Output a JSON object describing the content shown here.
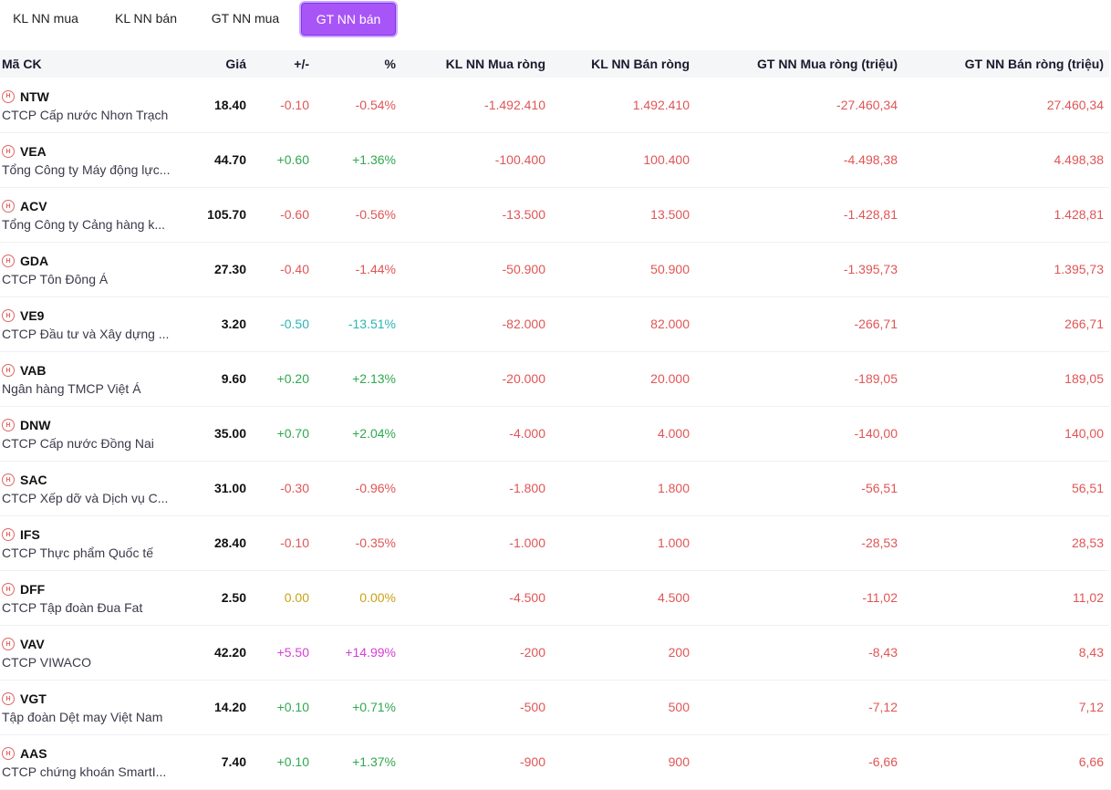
{
  "tabs": [
    {
      "label": "KL NN mua",
      "active": false
    },
    {
      "label": "KL NN bán",
      "active": false
    },
    {
      "label": "GT NN mua",
      "active": false
    },
    {
      "label": "GT NN bán",
      "active": true
    }
  ],
  "table": {
    "headers": {
      "symbol": "Mã CK",
      "price": "Giá",
      "change": "+/-",
      "percent": "%",
      "kl_buy": "KL NN Mua ròng",
      "kl_sell": "KL NN Bán ròng",
      "gt_buy": "GT NN Mua ròng (triệu)",
      "gt_sell": "GT NN Bán ròng (triệu)"
    },
    "rows": [
      {
        "code": "NTW",
        "name": "CTCP Cấp nước Nhơn Trạch",
        "price": "18.40",
        "change": "-0.10",
        "percent": "-0.54%",
        "tone": "red",
        "kl_buy": "-1.492.410",
        "kl_sell": "1.492.410",
        "gt_buy": "-27.460,34",
        "gt_sell": "27.460,34"
      },
      {
        "code": "VEA",
        "name": "Tổng Công ty Máy động lực...",
        "price": "44.70",
        "change": "+0.60",
        "percent": "+1.36%",
        "tone": "green",
        "kl_buy": "-100.400",
        "kl_sell": "100.400",
        "gt_buy": "-4.498,38",
        "gt_sell": "4.498,38"
      },
      {
        "code": "ACV",
        "name": "Tổng Công ty Cảng hàng k...",
        "price": "105.70",
        "change": "-0.60",
        "percent": "-0.56%",
        "tone": "red",
        "kl_buy": "-13.500",
        "kl_sell": "13.500",
        "gt_buy": "-1.428,81",
        "gt_sell": "1.428,81"
      },
      {
        "code": "GDA",
        "name": "CTCP Tôn Đông Á",
        "price": "27.30",
        "change": "-0.40",
        "percent": "-1.44%",
        "tone": "red",
        "kl_buy": "-50.900",
        "kl_sell": "50.900",
        "gt_buy": "-1.395,73",
        "gt_sell": "1.395,73"
      },
      {
        "code": "VE9",
        "name": "CTCP Đầu tư và Xây dựng ...",
        "price": "3.20",
        "change": "-0.50",
        "percent": "-13.51%",
        "tone": "teal",
        "kl_buy": "-82.000",
        "kl_sell": "82.000",
        "gt_buy": "-266,71",
        "gt_sell": "266,71"
      },
      {
        "code": "VAB",
        "name": "Ngân hàng TMCP Việt Á",
        "price": "9.60",
        "change": "+0.20",
        "percent": "+2.13%",
        "tone": "green",
        "kl_buy": "-20.000",
        "kl_sell": "20.000",
        "gt_buy": "-189,05",
        "gt_sell": "189,05"
      },
      {
        "code": "DNW",
        "name": "CTCP Cấp nước Đồng Nai",
        "price": "35.00",
        "change": "+0.70",
        "percent": "+2.04%",
        "tone": "green",
        "kl_buy": "-4.000",
        "kl_sell": "4.000",
        "gt_buy": "-140,00",
        "gt_sell": "140,00"
      },
      {
        "code": "SAC",
        "name": "CTCP Xếp dỡ và Dịch vụ C...",
        "price": "31.00",
        "change": "-0.30",
        "percent": "-0.96%",
        "tone": "red",
        "kl_buy": "-1.800",
        "kl_sell": "1.800",
        "gt_buy": "-56,51",
        "gt_sell": "56,51"
      },
      {
        "code": "IFS",
        "name": "CTCP Thực phẩm Quốc tế",
        "price": "28.40",
        "change": "-0.10",
        "percent": "-0.35%",
        "tone": "red",
        "kl_buy": "-1.000",
        "kl_sell": "1.000",
        "gt_buy": "-28,53",
        "gt_sell": "28,53"
      },
      {
        "code": "DFF",
        "name": "CTCP Tập đoàn Đua Fat",
        "price": "2.50",
        "change": "0.00",
        "percent": "0.00%",
        "tone": "yellow",
        "kl_buy": "-4.500",
        "kl_sell": "4.500",
        "gt_buy": "-11,02",
        "gt_sell": "11,02"
      },
      {
        "code": "VAV",
        "name": "CTCP VIWACO",
        "price": "42.20",
        "change": "+5.50",
        "percent": "+14.99%",
        "tone": "purple",
        "kl_buy": "-200",
        "kl_sell": "200",
        "gt_buy": "-8,43",
        "gt_sell": "8,43"
      },
      {
        "code": "VGT",
        "name": "Tập đoàn Dệt may Việt Nam",
        "price": "14.20",
        "change": "+0.10",
        "percent": "+0.71%",
        "tone": "green",
        "kl_buy": "-500",
        "kl_sell": "500",
        "gt_buy": "-7,12",
        "gt_sell": "7,12"
      },
      {
        "code": "AAS",
        "name": "CTCP chứng khoán SmartI...",
        "price": "7.40",
        "change": "+0.10",
        "percent": "+1.37%",
        "tone": "green",
        "kl_buy": "-900",
        "kl_sell": "900",
        "gt_buy": "-6,66",
        "gt_sell": "6,66"
      }
    ]
  },
  "icons": {
    "symbol_icon": "exchange-badge-icon",
    "symbol_icon_glyph": "H"
  },
  "colors": {
    "accent": "#a855f7",
    "red": "#e05555",
    "green": "#2fa84f",
    "teal": "#2bb5b5",
    "yellow": "#c8a216",
    "purple": "#d43fd4"
  }
}
